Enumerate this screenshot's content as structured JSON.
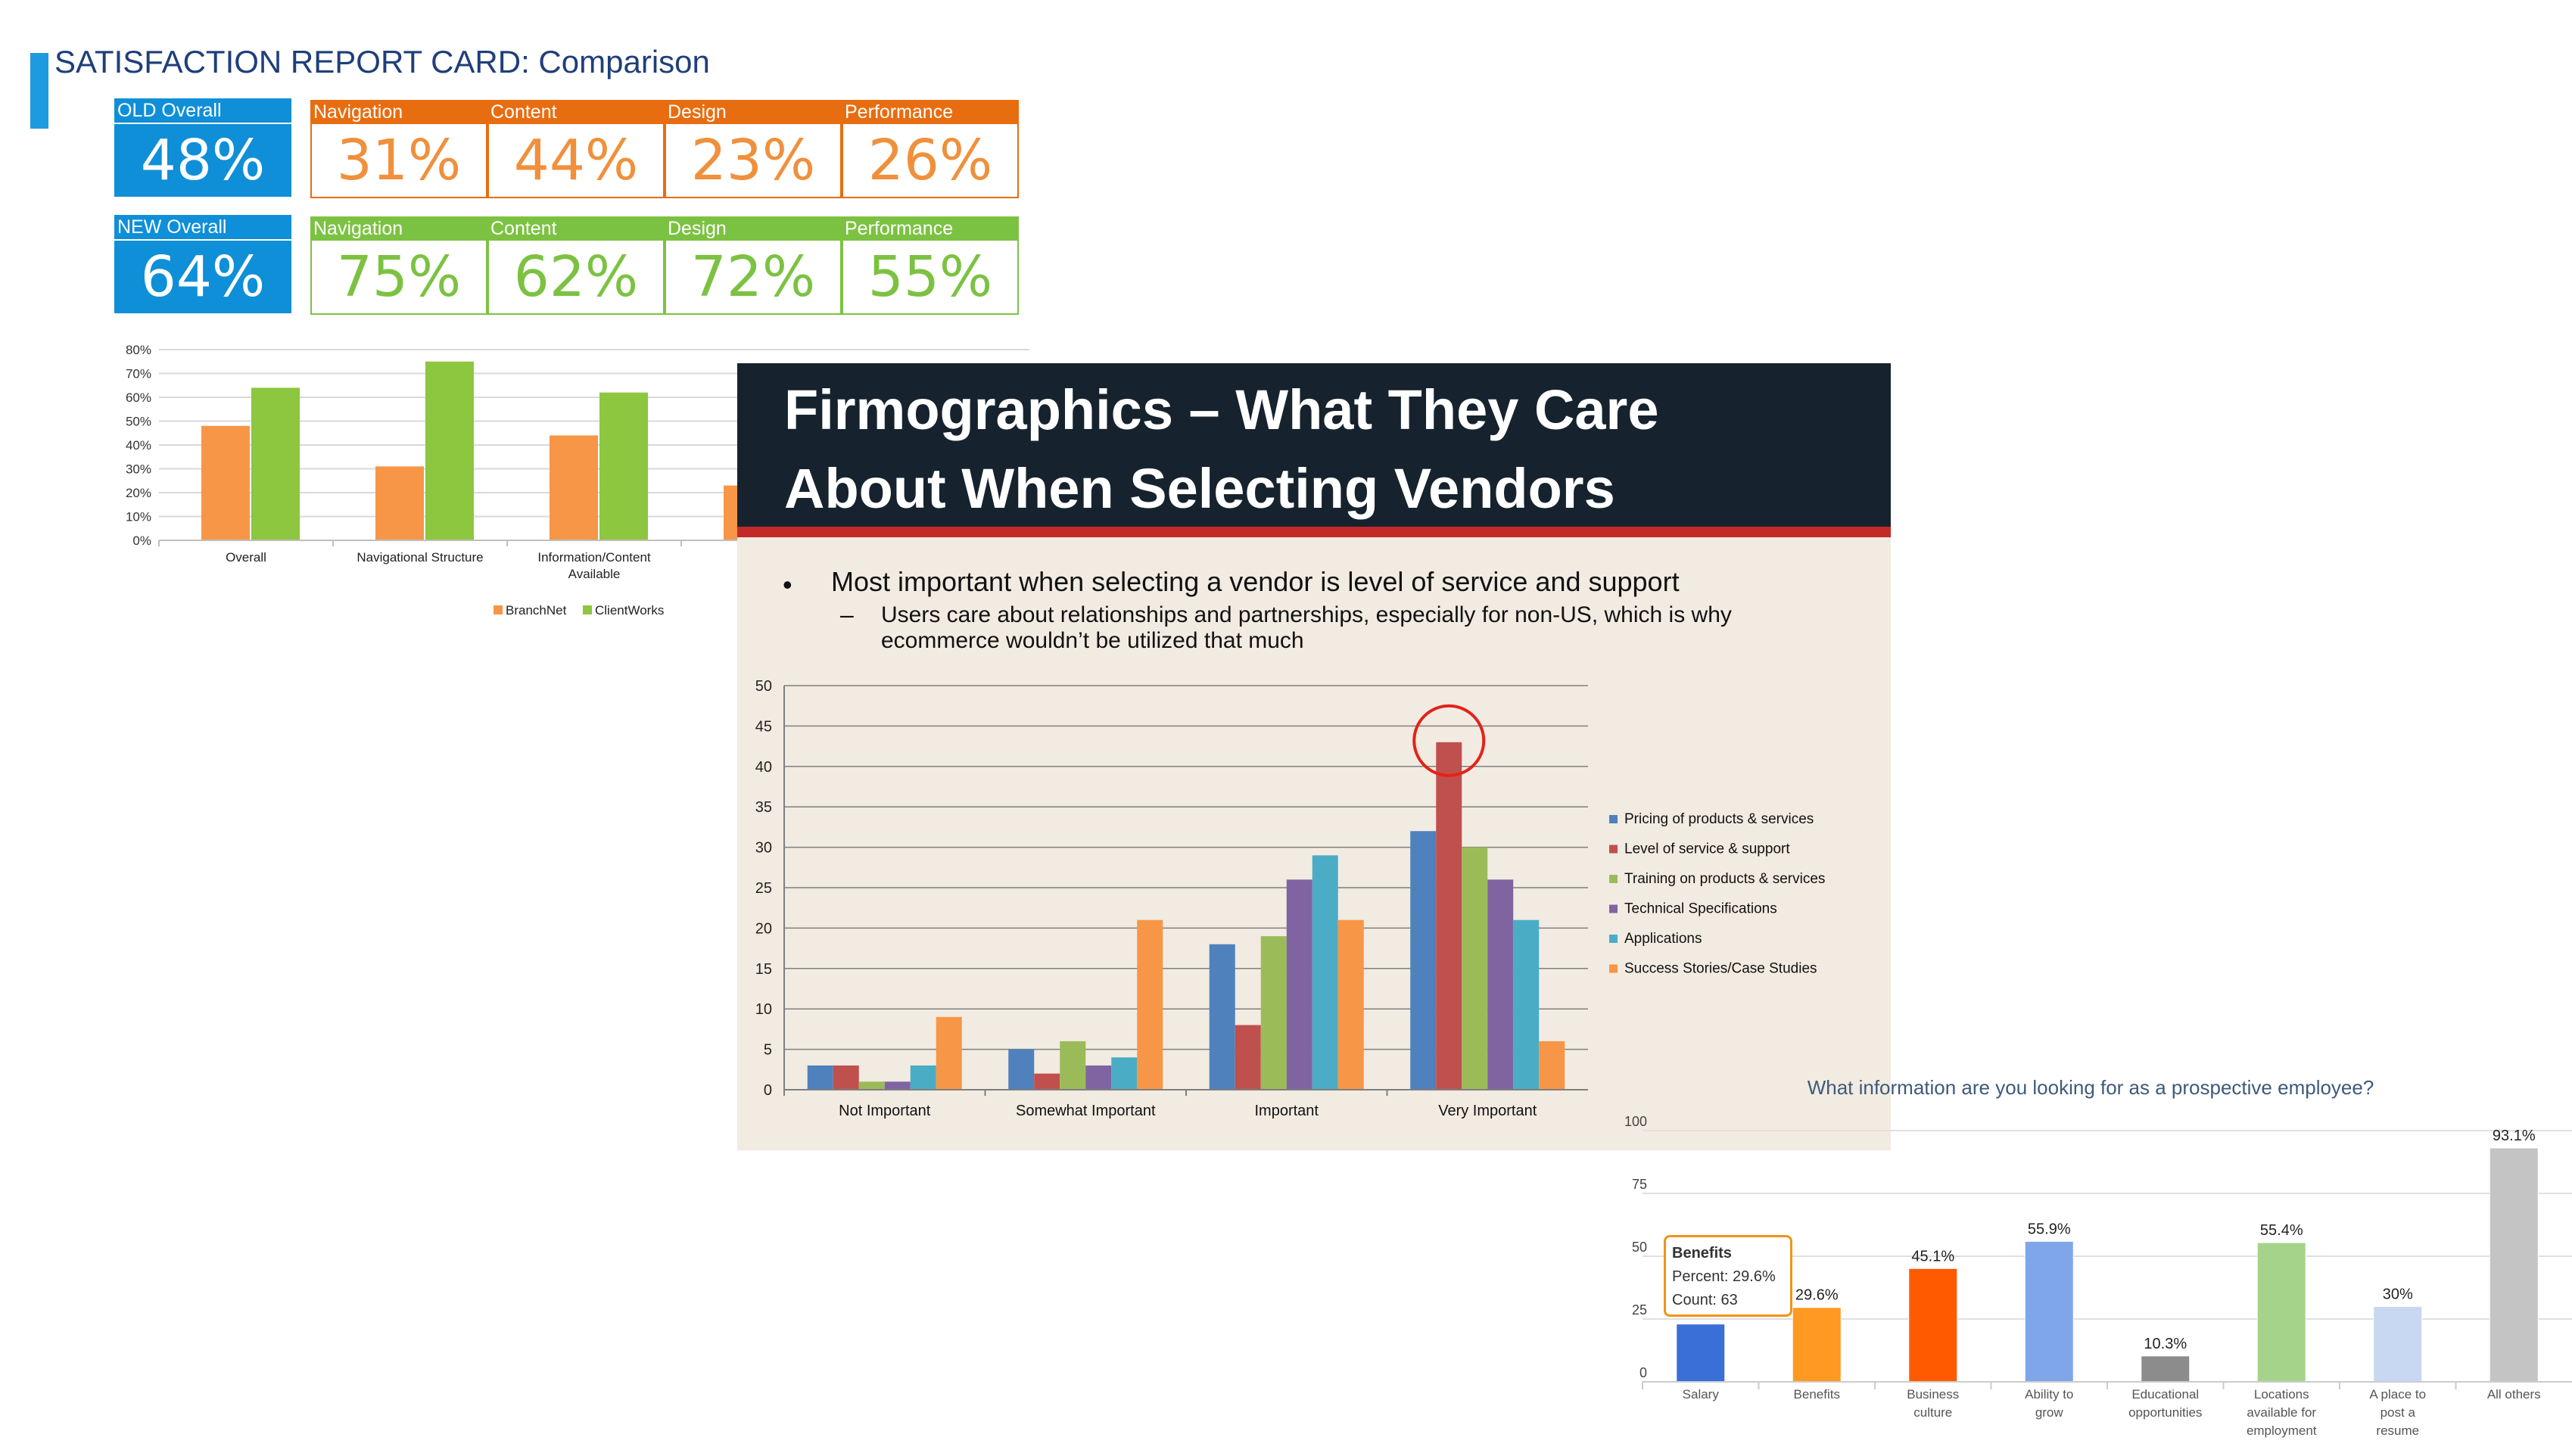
{
  "header": {
    "title": "SATISFACTION REPORT CARD: Comparison"
  },
  "old_row": [
    {
      "label": "OLD Overall",
      "value": "48%"
    },
    {
      "label": "Navigation",
      "value": "31%"
    },
    {
      "label": "Content",
      "value": "44%"
    },
    {
      "label": "Design",
      "value": "23%"
    },
    {
      "label": "Performance",
      "value": "26%"
    }
  ],
  "new_row": [
    {
      "label": "NEW Overall",
      "value": "64%"
    },
    {
      "label": "Navigation",
      "value": "75%"
    },
    {
      "label": "Content",
      "value": "62%"
    },
    {
      "label": "Design",
      "value": "72%"
    },
    {
      "label": "Performance",
      "value": "55%"
    }
  ],
  "colors": {
    "blue": "#0f8fd8",
    "orange": "#e86d10",
    "green": "#7cc242",
    "dark": "#16232e",
    "red": "#c22a28",
    "panel_bg": "#f2ebe2"
  },
  "slide": {
    "title_line1": "Firmographics – What They Care",
    "title_line2": "About When Selecting Vendors",
    "bullet": "Most important when selecting a vendor is level of service and support",
    "sub_bullet": "Users care about relationships and partnerships, especially for non-US, which is why ecommerce wouldn’t be utilized that much",
    "bullet_marker": "•",
    "dash_marker": "–"
  },
  "tooltip": {
    "title": "Benefits",
    "percent": "Percent: 29.6%",
    "count": "Count: 63"
  },
  "chart_data": [
    {
      "type": "bar",
      "categories": [
        "Overall",
        "Navigational Structure",
        "Information/Content Available",
        ""
      ],
      "series": [
        {
          "name": "BranchNet",
          "values": [
            48,
            31,
            44,
            23
          ],
          "color": "#f79646"
        },
        {
          "name": "ClientWorks",
          "values": [
            64,
            75,
            62,
            null
          ],
          "color": "#8dc63f"
        }
      ],
      "yticks": [
        "0%",
        "10%",
        "20%",
        "30%",
        "40%",
        "50%",
        "60%",
        "70%",
        "80%"
      ],
      "ylim": [
        0,
        80
      ],
      "legend": "bottom"
    },
    {
      "type": "bar",
      "categories": [
        "Not Important",
        "Somewhat Important",
        "Important",
        "Very Important"
      ],
      "series": [
        {
          "name": "Pricing of products & services",
          "values": [
            3,
            5,
            18,
            32
          ],
          "color": "#4f81bd"
        },
        {
          "name": "Level of service & support",
          "values": [
            3,
            2,
            8,
            43
          ],
          "color": "#c0504d"
        },
        {
          "name": "Training on products & services",
          "values": [
            1,
            6,
            19,
            30
          ],
          "color": "#9bbb59"
        },
        {
          "name": "Technical Specifications",
          "values": [
            1,
            3,
            26,
            26
          ],
          "color": "#8064a2"
        },
        {
          "name": "Applications",
          "values": [
            3,
            4,
            29,
            21
          ],
          "color": "#4bacc6"
        },
        {
          "name": "Success Stories/Case Studies",
          "values": [
            9,
            21,
            21,
            6
          ],
          "color": "#f79646"
        }
      ],
      "yticks": [
        "0",
        "5",
        "10",
        "15",
        "20",
        "25",
        "30",
        "35",
        "40",
        "45",
        "50"
      ],
      "ylim": [
        0,
        50
      ],
      "legend": "right",
      "highlight": "Very Important / Level of service & support"
    },
    {
      "type": "bar",
      "title": "What information are you looking for as a prospective employee?",
      "categories": [
        "Salary",
        "Benefits",
        "Business culture",
        "Ability to grow",
        "Educational opportunities",
        "Locations available for employment",
        "A place to post a resume",
        "All others"
      ],
      "category_lines": [
        [
          "Salary"
        ],
        [
          "Benefits"
        ],
        [
          "Business",
          "culture"
        ],
        [
          "Ability to",
          "grow"
        ],
        [
          "Educational",
          "opportunities"
        ],
        [
          "Locations",
          "available for",
          "employment"
        ],
        [
          "A place to",
          "post a",
          "resume"
        ],
        [
          "All others"
        ]
      ],
      "values": [
        23,
        29.6,
        45.1,
        55.9,
        10.3,
        55.4,
        30,
        93.1
      ],
      "labels": [
        "",
        "29.6%",
        "45.1%",
        "55.9%",
        "10.3%",
        "55.4%",
        "30%",
        "93.1%"
      ],
      "colors": [
        "#3a6fd8",
        "#ff9922",
        "#ff5a00",
        "#7fa6e8",
        "#8c8c8c",
        "#a5d38a",
        "#c8d8f2",
        "#c4c4c4"
      ],
      "yticks": [
        "0",
        "25",
        "50",
        "75",
        "100"
      ],
      "ylim": [
        0,
        100
      ]
    }
  ]
}
